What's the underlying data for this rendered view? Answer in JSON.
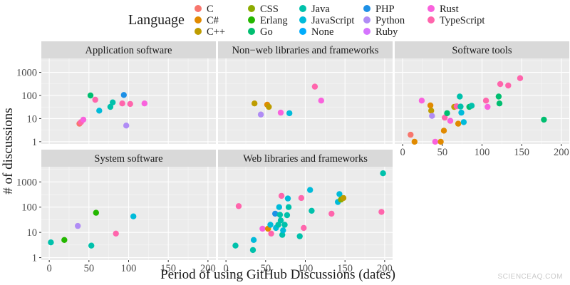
{
  "watermark": "SCIENCEAQ.COM",
  "chart_data": {
    "type": "scatter",
    "legend_title": "Language",
    "legend_position": "top",
    "xlabel": "Period of using GitHub Discussions (dates)",
    "ylabel": "# of discussions",
    "x_range": [
      0,
      200
    ],
    "x_ticks": [
      0,
      50,
      100,
      150,
      200
    ],
    "y_scale": "log10",
    "y_range": [
      0.8,
      4000
    ],
    "y_ticks": [
      1,
      10,
      100,
      1000
    ],
    "y_tick_labels": [
      "1",
      "10",
      "100",
      "1000"
    ],
    "grid": true,
    "languages": [
      {
        "name": "C",
        "color": "#F8766D"
      },
      {
        "name": "C#",
        "color": "#E18A00"
      },
      {
        "name": "C++",
        "color": "#BE9C00"
      },
      {
        "name": "CSS",
        "color": "#8CAB00"
      },
      {
        "name": "Erlang",
        "color": "#24B700"
      },
      {
        "name": "Go",
        "color": "#00BE70"
      },
      {
        "name": "Java",
        "color": "#00C1AB"
      },
      {
        "name": "JavaScript",
        "color": "#00BBDA"
      },
      {
        "name": "None",
        "color": "#00ACFC"
      },
      {
        "name": "PHP",
        "color": "#1E90E6"
      },
      {
        "name": "Python",
        "color": "#B08CF5"
      },
      {
        "name": "Ruby",
        "color": "#D575FE"
      },
      {
        "name": "Rust",
        "color": "#F962DD"
      },
      {
        "name": "TypeScript",
        "color": "#FF65AC"
      }
    ],
    "panels": [
      {
        "title": "Application software",
        "points": [
          {
            "x": 38,
            "y": 6,
            "lang": "C"
          },
          {
            "x": 40,
            "y": 7,
            "lang": "TypeScript"
          },
          {
            "x": 43,
            "y": 9,
            "lang": "Rust"
          },
          {
            "x": 52,
            "y": 100,
            "lang": "Go"
          },
          {
            "x": 58,
            "y": 65,
            "lang": "TypeScript"
          },
          {
            "x": 63,
            "y": 22,
            "lang": "JavaScript"
          },
          {
            "x": 77,
            "y": 32,
            "lang": "Java"
          },
          {
            "x": 80,
            "y": 50,
            "lang": "Java"
          },
          {
            "x": 92,
            "y": 45,
            "lang": "TypeScript"
          },
          {
            "x": 94,
            "y": 105,
            "lang": "PHP"
          },
          {
            "x": 97,
            "y": 5,
            "lang": "Python"
          },
          {
            "x": 102,
            "y": 43,
            "lang": "TypeScript"
          },
          {
            "x": 120,
            "y": 45,
            "lang": "Rust"
          }
        ]
      },
      {
        "title": "Non−web libraries and frameworks",
        "points": [
          {
            "x": 36,
            "y": 45,
            "lang": "C++"
          },
          {
            "x": 44,
            "y": 15,
            "lang": "Python"
          },
          {
            "x": 52,
            "y": 40,
            "lang": "C#"
          },
          {
            "x": 54,
            "y": 32,
            "lang": "C++"
          },
          {
            "x": 69,
            "y": 18,
            "lang": "Rust"
          },
          {
            "x": 80,
            "y": 17,
            "lang": "JavaScript"
          },
          {
            "x": 112,
            "y": 240,
            "lang": "TypeScript"
          },
          {
            "x": 120,
            "y": 60,
            "lang": "Rust"
          }
        ]
      },
      {
        "title": "Software tools",
        "points": [
          {
            "x": 10,
            "y": 2,
            "lang": "C"
          },
          {
            "x": 15,
            "y": 1,
            "lang": "C#"
          },
          {
            "x": 24,
            "y": 60,
            "lang": "Rust"
          },
          {
            "x": 35,
            "y": 37,
            "lang": "C#"
          },
          {
            "x": 36,
            "y": 22,
            "lang": "C++"
          },
          {
            "x": 37,
            "y": 13,
            "lang": "Python"
          },
          {
            "x": 41,
            "y": 1,
            "lang": "Rust"
          },
          {
            "x": 48,
            "y": 1,
            "lang": "C#"
          },
          {
            "x": 52,
            "y": 3,
            "lang": "C#"
          },
          {
            "x": 53,
            "y": 11,
            "lang": "TypeScript"
          },
          {
            "x": 56,
            "y": 17,
            "lang": "Go"
          },
          {
            "x": 60,
            "y": 8,
            "lang": "Rust"
          },
          {
            "x": 65,
            "y": 32,
            "lang": "C++"
          },
          {
            "x": 68,
            "y": 34,
            "lang": "TypeScript"
          },
          {
            "x": 70,
            "y": 6,
            "lang": "C#"
          },
          {
            "x": 72,
            "y": 90,
            "lang": "Java"
          },
          {
            "x": 73,
            "y": 33,
            "lang": "Java"
          },
          {
            "x": 74,
            "y": 18,
            "lang": "JavaScript"
          },
          {
            "x": 77,
            "y": 7,
            "lang": "JavaScript"
          },
          {
            "x": 84,
            "y": 32,
            "lang": "Go"
          },
          {
            "x": 87,
            "y": 36,
            "lang": "Java"
          },
          {
            "x": 105,
            "y": 60,
            "lang": "TypeScript"
          },
          {
            "x": 107,
            "y": 32,
            "lang": "Rust"
          },
          {
            "x": 121,
            "y": 90,
            "lang": "Go"
          },
          {
            "x": 122,
            "y": 45,
            "lang": "Go"
          },
          {
            "x": 123,
            "y": 310,
            "lang": "TypeScript"
          },
          {
            "x": 133,
            "y": 270,
            "lang": "TypeScript"
          },
          {
            "x": 148,
            "y": 560,
            "lang": "TypeScript"
          },
          {
            "x": 178,
            "y": 9,
            "lang": "Go"
          }
        ]
      },
      {
        "title": "System software",
        "points": [
          {
            "x": 2,
            "y": 4,
            "lang": "Java"
          },
          {
            "x": 19,
            "y": 5,
            "lang": "Erlang"
          },
          {
            "x": 36,
            "y": 18,
            "lang": "Python"
          },
          {
            "x": 53,
            "y": 3,
            "lang": "Java"
          },
          {
            "x": 59,
            "y": 60,
            "lang": "Erlang"
          },
          {
            "x": 84,
            "y": 9,
            "lang": "TypeScript"
          },
          {
            "x": 106,
            "y": 43,
            "lang": "JavaScript"
          }
        ]
      },
      {
        "title": "Web libraries and frameworks",
        "points": [
          {
            "x": 12,
            "y": 3,
            "lang": "Java"
          },
          {
            "x": 16,
            "y": 110,
            "lang": "TypeScript"
          },
          {
            "x": 34,
            "y": 2,
            "lang": "Java"
          },
          {
            "x": 35,
            "y": 5,
            "lang": "JavaScript"
          },
          {
            "x": 46,
            "y": 14,
            "lang": "Rust"
          },
          {
            "x": 53,
            "y": 14,
            "lang": "C#"
          },
          {
            "x": 56,
            "y": 20,
            "lang": "JavaScript"
          },
          {
            "x": 57,
            "y": 9,
            "lang": "TypeScript"
          },
          {
            "x": 62,
            "y": 55,
            "lang": "PHP"
          },
          {
            "x": 63,
            "y": 15,
            "lang": "JavaScript"
          },
          {
            "x": 66,
            "y": 20,
            "lang": "Java"
          },
          {
            "x": 67,
            "y": 100,
            "lang": "JavaScript"
          },
          {
            "x": 68,
            "y": 50,
            "lang": "Java"
          },
          {
            "x": 69,
            "y": 30,
            "lang": "Java"
          },
          {
            "x": 70,
            "y": 280,
            "lang": "TypeScript"
          },
          {
            "x": 71,
            "y": 8,
            "lang": "Java"
          },
          {
            "x": 72,
            "y": 12,
            "lang": "JavaScript"
          },
          {
            "x": 74,
            "y": 20,
            "lang": "Java"
          },
          {
            "x": 77,
            "y": 48,
            "lang": "Java"
          },
          {
            "x": 78,
            "y": 220,
            "lang": "JavaScript"
          },
          {
            "x": 79,
            "y": 100,
            "lang": "Java"
          },
          {
            "x": 93,
            "y": 7,
            "lang": "Java"
          },
          {
            "x": 95,
            "y": 230,
            "lang": "TypeScript"
          },
          {
            "x": 98,
            "y": 15,
            "lang": "TypeScript"
          },
          {
            "x": 106,
            "y": 480,
            "lang": "JavaScript"
          },
          {
            "x": 108,
            "y": 72,
            "lang": "Java"
          },
          {
            "x": 133,
            "y": 55,
            "lang": "TypeScript"
          },
          {
            "x": 141,
            "y": 160,
            "lang": "JavaScript"
          },
          {
            "x": 143,
            "y": 330,
            "lang": "JavaScript"
          },
          {
            "x": 145,
            "y": 200,
            "lang": "CSS"
          },
          {
            "x": 148,
            "y": 230,
            "lang": "C++"
          },
          {
            "x": 196,
            "y": 65,
            "lang": "TypeScript"
          },
          {
            "x": 198,
            "y": 2200,
            "lang": "Java"
          }
        ]
      }
    ]
  }
}
